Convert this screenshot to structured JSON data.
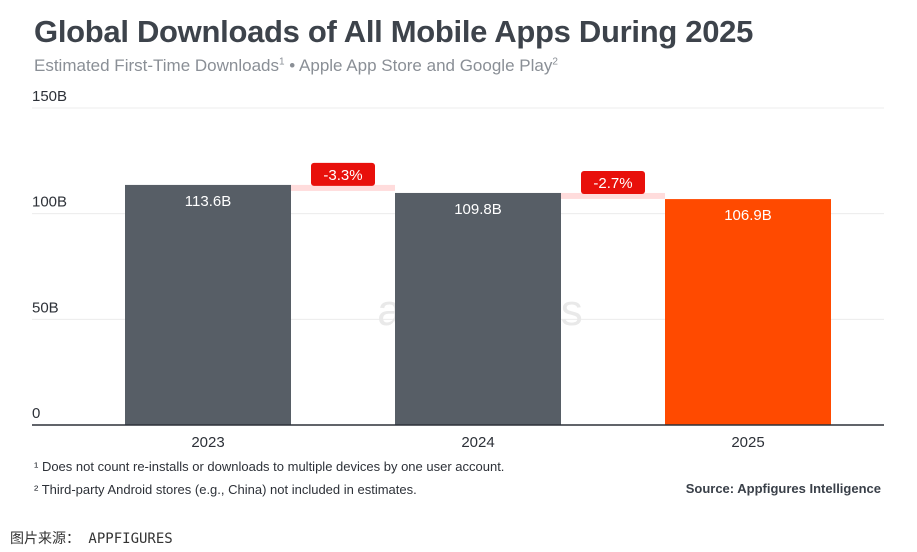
{
  "title": "Global Downloads of All Mobile Apps During 2025",
  "subtitle": {
    "text": "Estimated First-Time Downloads",
    "sup1": "1",
    "mid": " • Apple App Store and Google Play",
    "sup2": "2"
  },
  "chart_data": {
    "type": "bar",
    "categories": [
      "2023",
      "2024",
      "2025"
    ],
    "values": [
      113.6,
      109.8,
      106.9
    ],
    "data_labels": [
      "113.6B",
      "109.8B",
      "106.9B"
    ],
    "change_labels": [
      "-3.3%",
      "-2.7%"
    ],
    "ylim": [
      0,
      150
    ],
    "yticks": [
      {
        "v": 0,
        "label": "0"
      },
      {
        "v": 50,
        "label": "50B"
      },
      {
        "v": 100,
        "label": "100B"
      },
      {
        "v": 150,
        "label": "150B"
      }
    ],
    "grid": true,
    "colors": {
      "bar": "#575e66",
      "highlight": "#ff4a00",
      "change_badge": "#e8100b",
      "change_band": "#ffdcdc"
    }
  },
  "watermark": "appfigures",
  "footnotes": [
    "¹ Does not count re-installs or downloads to multiple devices by one user account.",
    "² Third-party Android stores (e.g., China) not included in estimates."
  ],
  "source": "Source: Appfigures Intelligence",
  "credit": "图片来源： APPFIGURES"
}
